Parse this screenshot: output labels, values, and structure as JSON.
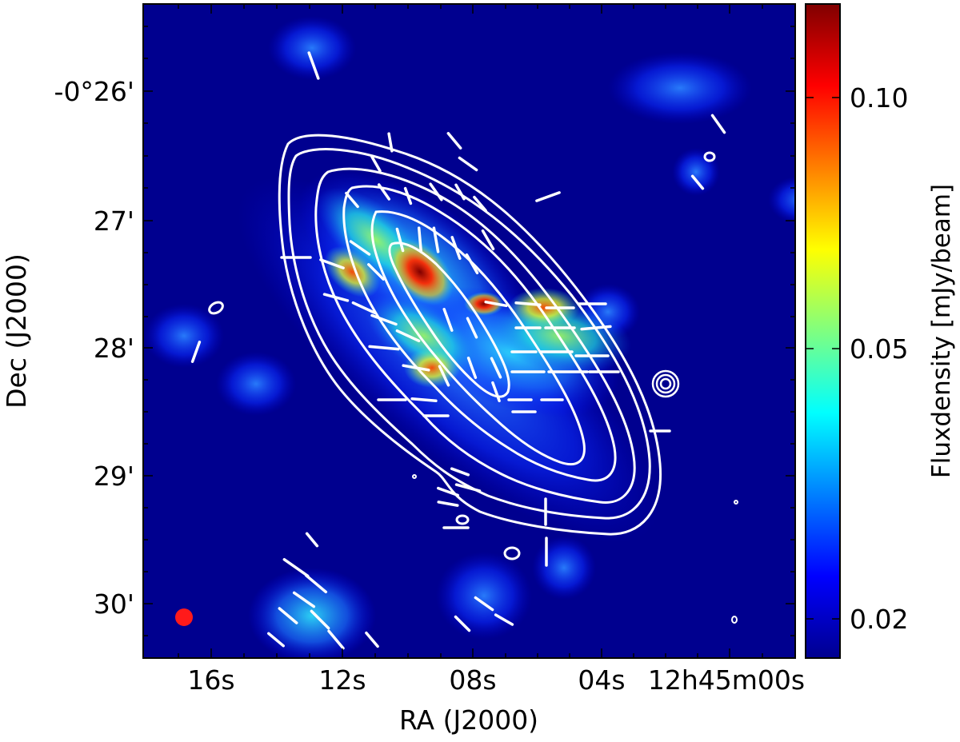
{
  "chart_data": {
    "type": "heatmap",
    "title": "",
    "xlabel": "RA (J2000)",
    "ylabel": "Dec (J2000)",
    "x_ticks": [
      "16s",
      "12s",
      "08s",
      "04s",
      "12h45m00s"
    ],
    "y_ticks": [
      "-0°26'",
      "27'",
      "28'",
      "29'",
      "30'"
    ],
    "colorbar": {
      "label": "Fluxdensity [mJy/beam]",
      "ticks": [
        "0.10",
        "0.05",
        "0.02"
      ],
      "range": [
        0.018,
        0.12
      ],
      "colormap": "jet"
    },
    "overlays": [
      "white total-intensity contours",
      "white polarization vectors",
      "red beam ellipse"
    ],
    "grid": false
  },
  "colors": {
    "background": "#00008f",
    "contour": "#ffffff",
    "vector": "#ffffff",
    "beam": "#ff1a1a"
  }
}
